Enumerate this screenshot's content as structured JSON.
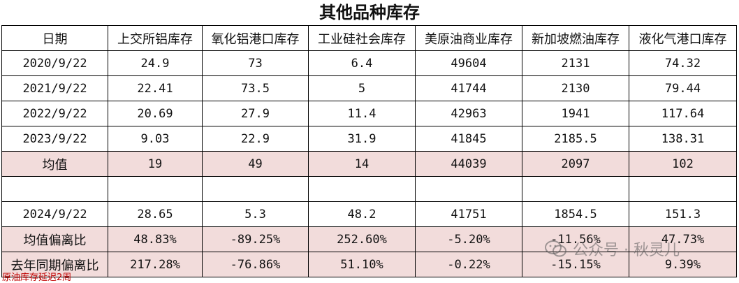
{
  "title": "其他品种库存",
  "columns": [
    "日期",
    "上交所铝库存",
    "氧化铝港口库存",
    "工业硅社会库存",
    "美原油商业库存",
    "新加坡燃油库存",
    "液化气港口库存"
  ],
  "rows": [
    {
      "label": "2020/9/22",
      "values": [
        "24.9",
        "73",
        "6.4",
        "49604",
        "2131",
        "74.32"
      ]
    },
    {
      "label": "2021/9/22",
      "values": [
        "22.41",
        "73.5",
        "5",
        "41744",
        "2130",
        "79.44"
      ]
    },
    {
      "label": "2022/9/22",
      "values": [
        "20.69",
        "27.9",
        "11.4",
        "42963",
        "1941",
        "117.64"
      ]
    },
    {
      "label": "2023/9/22",
      "values": [
        "9.03",
        "22.9",
        "31.9",
        "41845",
        "2185.5",
        "138.31"
      ]
    }
  ],
  "average": {
    "label": "均值",
    "values": [
      "19",
      "49",
      "14",
      "44039",
      "2097",
      "102"
    ]
  },
  "current": {
    "label": "2024/9/22",
    "values": [
      "28.65",
      "5.3",
      "48.2",
      "41751",
      "1854.5",
      "151.3"
    ]
  },
  "avg_deviation": {
    "label": "均值偏离比",
    "values": [
      "48.83%",
      "-89.25%",
      "252.60%",
      "-5.20%",
      "-11.56%",
      "47.73%"
    ]
  },
  "yoy_deviation": {
    "label": "去年同期偏离比",
    "values": [
      "217.28%",
      "-76.86%",
      "51.10%",
      "-0.22%",
      "-15.15%",
      "9.39%"
    ]
  },
  "note": "原油库存延迟2周",
  "watermark": {
    "text": "公众号 · 秋灵儿",
    "icon": "wechat-icon"
  },
  "colors": {
    "highlight_row": "#f2dcdb",
    "note": "#c00000",
    "border": "#000000"
  }
}
